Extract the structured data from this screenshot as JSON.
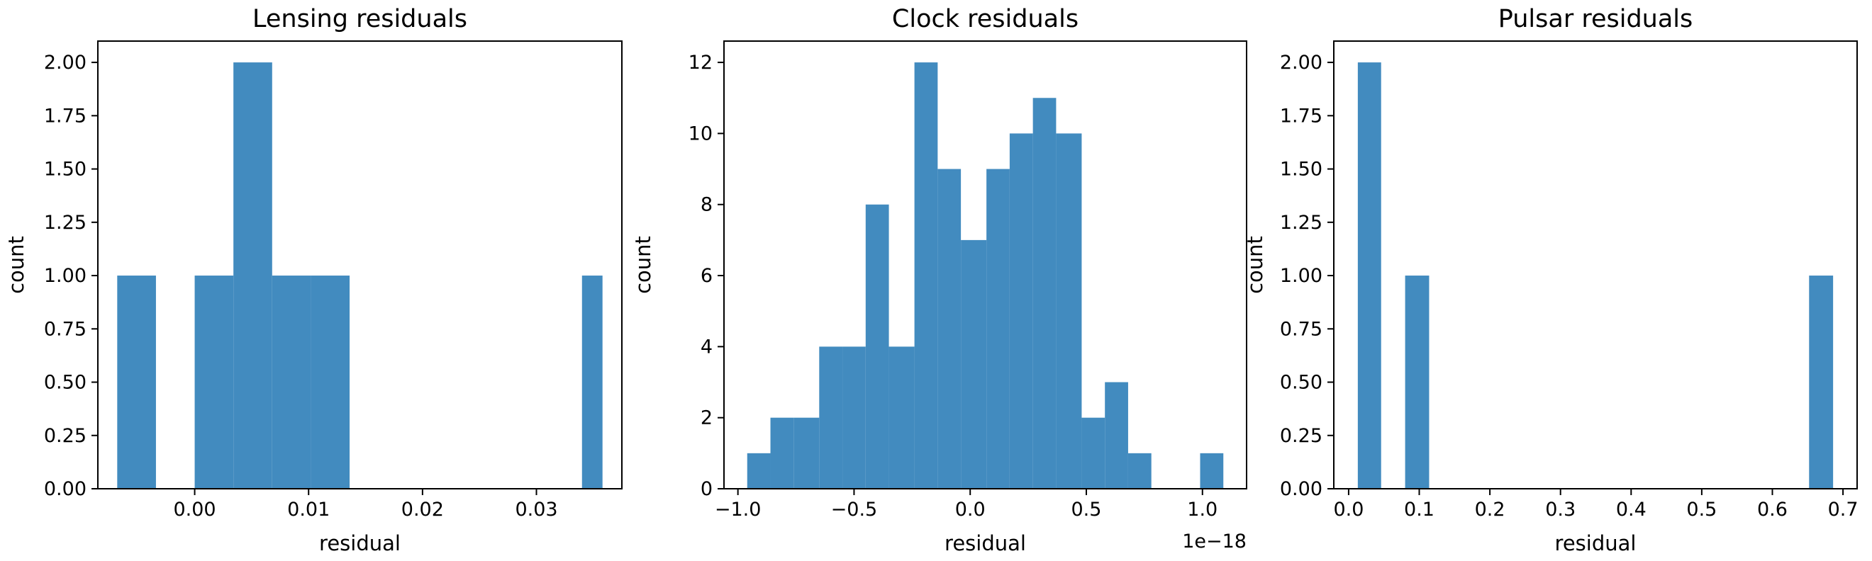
{
  "chart_data": [
    {
      "type": "bar",
      "title": "Lensing residuals",
      "xlabel": "residual",
      "ylabel": "count",
      "bin_edges": [
        -0.0068,
        -0.0034,
        0.0,
        0.0034,
        0.0068,
        0.0102,
        0.0136,
        0.017,
        0.0204,
        0.0238,
        0.0272,
        0.0306,
        0.034,
        0.0358
      ],
      "bins": [
        {
          "x0": -0.0068,
          "x1": -0.0034,
          "count": 1
        },
        {
          "x0": -0.0034,
          "x1": 0.0,
          "count": 0
        },
        {
          "x0": 0.0,
          "x1": 0.0034,
          "count": 1
        },
        {
          "x0": 0.0034,
          "x1": 0.0068,
          "count": 2
        },
        {
          "x0": 0.0068,
          "x1": 0.0102,
          "count": 1
        },
        {
          "x0": 0.0102,
          "x1": 0.0136,
          "count": 1
        },
        {
          "x0": 0.0136,
          "x1": 0.017,
          "count": 0
        },
        {
          "x0": 0.017,
          "x1": 0.0204,
          "count": 0
        },
        {
          "x0": 0.0204,
          "x1": 0.0238,
          "count": 0
        },
        {
          "x0": 0.0238,
          "x1": 0.0272,
          "count": 0
        },
        {
          "x0": 0.0272,
          "x1": 0.0306,
          "count": 0
        },
        {
          "x0": 0.0306,
          "x1": 0.034,
          "count": 0
        },
        {
          "x0": 0.034,
          "x1": 0.0358,
          "count": 1
        }
      ],
      "xlim": [
        -0.0085,
        0.0375
      ],
      "ylim": [
        0,
        2.1
      ],
      "xticks": [
        0.0,
        0.01,
        0.02,
        0.03
      ],
      "xtick_labels": [
        "0.00",
        "0.01",
        "0.02",
        "0.03"
      ],
      "yticks": [
        0,
        0.25,
        0.5,
        0.75,
        1.0,
        1.25,
        1.5,
        1.75,
        2.0
      ],
      "ytick_labels": [
        "0.00",
        "0.25",
        "0.50",
        "0.75",
        "1.00",
        "1.25",
        "1.50",
        "1.75",
        "2.00"
      ],
      "offset_text": "",
      "bar_color": "#428bbf",
      "grid": false,
      "legend": "none"
    },
    {
      "type": "bar",
      "title": "Clock residuals",
      "xlabel": "residual",
      "ylabel": "count",
      "bins": [
        {
          "x0": -0.96,
          "x1": -0.86,
          "count": 1
        },
        {
          "x0": -0.86,
          "x1": -0.76,
          "count": 2
        },
        {
          "x0": -0.76,
          "x1": -0.65,
          "count": 2
        },
        {
          "x0": -0.65,
          "x1": -0.55,
          "count": 4
        },
        {
          "x0": -0.55,
          "x1": -0.45,
          "count": 4
        },
        {
          "x0": -0.45,
          "x1": -0.35,
          "count": 8
        },
        {
          "x0": -0.35,
          "x1": -0.24,
          "count": 4
        },
        {
          "x0": -0.24,
          "x1": -0.14,
          "count": 12
        },
        {
          "x0": -0.14,
          "x1": -0.04,
          "count": 9
        },
        {
          "x0": -0.04,
          "x1": 0.07,
          "count": 7
        },
        {
          "x0": 0.07,
          "x1": 0.17,
          "count": 9
        },
        {
          "x0": 0.17,
          "x1": 0.27,
          "count": 10
        },
        {
          "x0": 0.27,
          "x1": 0.37,
          "count": 11
        },
        {
          "x0": 0.37,
          "x1": 0.48,
          "count": 10
        },
        {
          "x0": 0.48,
          "x1": 0.58,
          "count": 2
        },
        {
          "x0": 0.58,
          "x1": 0.68,
          "count": 3
        },
        {
          "x0": 0.68,
          "x1": 0.78,
          "count": 1
        },
        {
          "x0": 0.78,
          "x1": 0.99,
          "count": 0
        },
        {
          "x0": 0.99,
          "x1": 1.09,
          "count": 1
        }
      ],
      "xlim": [
        -1.06,
        1.19
      ],
      "ylim": [
        0,
        12.6
      ],
      "xticks": [
        -1.0,
        -0.5,
        0.0,
        0.5,
        1.0
      ],
      "xtick_labels": [
        "−1.0",
        "−0.5",
        "0.0",
        "0.5",
        "1.0"
      ],
      "yticks": [
        0,
        2,
        4,
        6,
        8,
        10,
        12
      ],
      "ytick_labels": [
        "0",
        "2",
        "4",
        "6",
        "8",
        "10",
        "12"
      ],
      "offset_text": "1e−18",
      "bar_color": "#428bbf",
      "grid": false,
      "legend": "none"
    },
    {
      "type": "bar",
      "title": "Pulsar residuals",
      "xlabel": "residual",
      "ylabel": "count",
      "bins": [
        {
          "x0": 0.013,
          "x1": 0.046,
          "count": 2
        },
        {
          "x0": 0.046,
          "x1": 0.08,
          "count": 0
        },
        {
          "x0": 0.08,
          "x1": 0.114,
          "count": 1
        },
        {
          "x0": 0.114,
          "x1": 0.652,
          "count": 0
        },
        {
          "x0": 0.652,
          "x1": 0.686,
          "count": 1
        }
      ],
      "xlim": [
        -0.021,
        0.72
      ],
      "ylim": [
        0,
        2.1
      ],
      "xticks": [
        0.0,
        0.1,
        0.2,
        0.3,
        0.4,
        0.5,
        0.6,
        0.7
      ],
      "xtick_labels": [
        "0.0",
        "0.1",
        "0.2",
        "0.3",
        "0.4",
        "0.5",
        "0.6",
        "0.7"
      ],
      "yticks": [
        0,
        0.25,
        0.5,
        0.75,
        1.0,
        1.25,
        1.5,
        1.75,
        2.0
      ],
      "ytick_labels": [
        "0.00",
        "0.25",
        "0.50",
        "0.75",
        "1.00",
        "1.25",
        "1.50",
        "1.75",
        "2.00"
      ],
      "offset_text": "",
      "bar_color": "#428bbf",
      "grid": false,
      "legend": "none"
    }
  ]
}
